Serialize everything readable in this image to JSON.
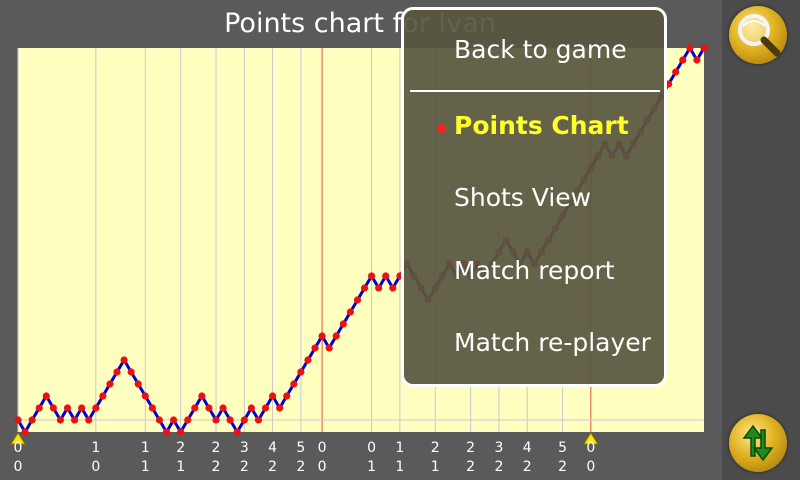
{
  "title": "Points chart for Ivan",
  "menu": {
    "items": [
      {
        "label": "Back to game"
      },
      {
        "label": "Points Chart",
        "selected": true
      },
      {
        "label": "Shots View"
      },
      {
        "label": "Match report"
      },
      {
        "label": "Match re-player"
      }
    ]
  },
  "icons": {
    "zoom": "magnifier-ball-icon",
    "swap": "up-down-arrows-icon"
  },
  "colors": {
    "plot_background": "#ffffc0",
    "line": "#0000d0",
    "points": "#ee1010",
    "set_separator": "#e05050",
    "menu_highlight": "#ffff2a"
  },
  "chart_data": {
    "type": "line",
    "y": [
      0,
      -1,
      0,
      1,
      2,
      1,
      0,
      1,
      0,
      1,
      0,
      1,
      2,
      3,
      4,
      5,
      4,
      3,
      2,
      1,
      0,
      -1,
      0,
      -1,
      0,
      1,
      2,
      1,
      0,
      1,
      0,
      -1,
      0,
      1,
      0,
      1,
      2,
      1,
      2,
      3,
      4,
      5,
      6,
      7,
      6,
      7,
      8,
      9,
      10,
      11,
      12,
      11,
      12,
      11,
      12,
      13,
      12,
      11,
      10,
      11,
      12,
      13,
      12,
      13,
      12,
      13,
      12,
      13,
      14,
      15,
      14,
      13,
      14,
      13,
      14,
      15,
      16,
      17,
      18,
      19,
      20,
      21,
      22,
      23,
      22,
      23,
      22,
      23,
      24,
      25,
      26,
      27,
      28,
      29,
      30,
      31,
      30,
      31
    ],
    "x_tick_labels": [
      {
        "index": 0,
        "top": "0",
        "bottom": "0"
      },
      {
        "index": 11,
        "top": "1",
        "bottom": "0"
      },
      {
        "index": 18,
        "top": "1",
        "bottom": "1"
      },
      {
        "index": 23,
        "top": "2",
        "bottom": "1"
      },
      {
        "index": 28,
        "top": "2",
        "bottom": "2"
      },
      {
        "index": 32,
        "top": "3",
        "bottom": "2"
      },
      {
        "index": 36,
        "top": "4",
        "bottom": "2"
      },
      {
        "index": 40,
        "top": "5",
        "bottom": "2"
      },
      {
        "index": 43,
        "top": "0",
        "bottom": "0"
      },
      {
        "index": 50,
        "top": "0",
        "bottom": "1"
      },
      {
        "index": 54,
        "top": "1",
        "bottom": "1"
      },
      {
        "index": 59,
        "top": "2",
        "bottom": "1"
      },
      {
        "index": 64,
        "top": "2",
        "bottom": "2"
      },
      {
        "index": 68,
        "top": "3",
        "bottom": "2"
      },
      {
        "index": 72,
        "top": "4",
        "bottom": "2"
      },
      {
        "index": 77,
        "top": "5",
        "bottom": "2"
      },
      {
        "index": 81,
        "top": "0",
        "bottom": "0"
      }
    ],
    "set_boundaries": [
      43,
      81
    ],
    "set_markers": [
      0,
      81
    ],
    "grid": true
  }
}
